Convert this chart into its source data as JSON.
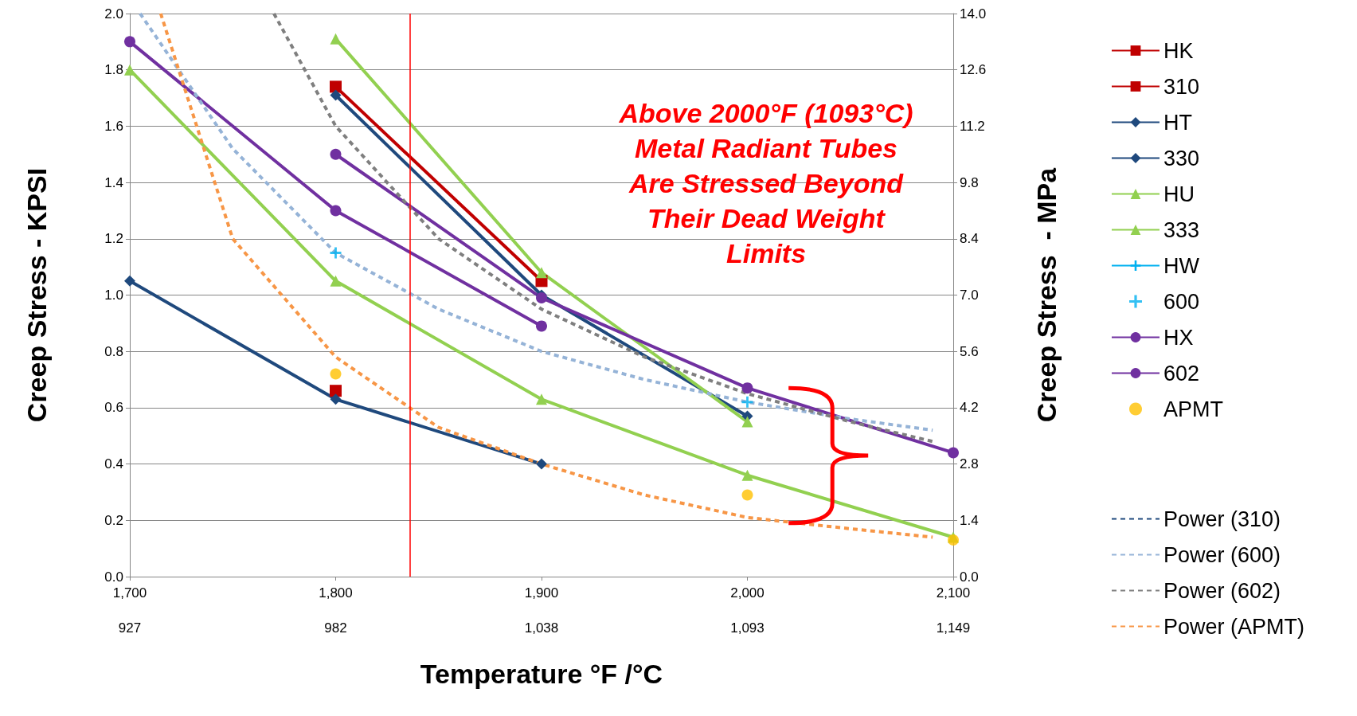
{
  "chart_data": {
    "type": "line",
    "xlabel": "Temperature °F /°C",
    "ylabel": "Creep Stress - KPSI",
    "y2label": "Creep Stress  - MPa",
    "x": [
      1700,
      1800,
      1900,
      2000,
      2100
    ],
    "xlim": [
      1700,
      2100
    ],
    "xticks": [
      {
        "value": 1700,
        "label": "1,700"
      },
      {
        "value": 1800,
        "label": "1,800"
      },
      {
        "value": 1900,
        "label": "1,900"
      },
      {
        "value": 2000,
        "label": "2,000"
      },
      {
        "value": 2100,
        "label": "2,100"
      }
    ],
    "x2lim": [
      926.67,
      1148.89
    ],
    "x2ticks": [
      {
        "value": 926.67,
        "label": "927"
      },
      {
        "value": 982.22,
        "label": "982"
      },
      {
        "value": 1037.78,
        "label": "1,038"
      },
      {
        "value": 1093.33,
        "label": "1,093"
      },
      {
        "value": 1148.89,
        "label": "1,149"
      }
    ],
    "ylim": [
      0,
      2
    ],
    "yticks": [
      {
        "value": 0,
        "label": "0.0"
      },
      0.2,
      0.4,
      0.6,
      0.8,
      {
        "value": 1,
        "label": "1.0"
      },
      1.2,
      1.4,
      1.6,
      1.8,
      {
        "value": 2,
        "label": "2.0"
      }
    ],
    "y2lim": [
      0,
      14
    ],
    "y2ticks": [
      {
        "value": 0,
        "label": "0.0"
      },
      1.4,
      2.8,
      4.2,
      5.6,
      {
        "value": 7,
        "label": "7.0"
      },
      8.4,
      9.8,
      11.2,
      12.6,
      {
        "value": 14,
        "label": "14.0"
      }
    ],
    "grid": "y",
    "legend": "right",
    "series": [
      {
        "name": "HK",
        "color": "#c00000",
        "marker": "square",
        "values": [
          null,
          1.74,
          1.05,
          null,
          null
        ]
      },
      {
        "name": "310",
        "color": "#c00000",
        "marker": "square",
        "values": [
          null,
          0.66,
          null,
          null,
          null
        ]
      },
      {
        "name": "HT",
        "color": "#1f497d",
        "marker": "diamond",
        "values": [
          null,
          1.71,
          1.0,
          0.57,
          null
        ]
      },
      {
        "name": "330",
        "color": "#1f497d",
        "marker": "diamond",
        "values": [
          1.05,
          0.63,
          0.4,
          null,
          null
        ]
      },
      {
        "name": "HU",
        "color": "#92d050",
        "marker": "triangle",
        "values": [
          null,
          1.91,
          1.08,
          0.55,
          null
        ]
      },
      {
        "name": "333",
        "color": "#92d050",
        "marker": "triangle",
        "values": [
          1.8,
          1.05,
          0.63,
          0.36,
          0.14
        ]
      },
      {
        "name": "HW",
        "color": "#00b0f0",
        "marker": "cross",
        "values": [
          null,
          null,
          null,
          null,
          null
        ]
      },
      {
        "name": "600",
        "type": "scatter",
        "color": "#00b0f0",
        "marker": "cross",
        "values": [
          null,
          1.15,
          null,
          0.62,
          null
        ]
      },
      {
        "name": "HX",
        "color": "#7030a0",
        "marker": "circle",
        "values": [
          1.9,
          1.3,
          0.89,
          null,
          null
        ]
      },
      {
        "name": "602",
        "color": "#7030a0",
        "marker": "circle",
        "values": [
          null,
          1.5,
          0.99,
          0.67,
          0.44
        ]
      },
      {
        "name": "APMT",
        "type": "scatter",
        "color": "#ffc000",
        "marker": "circle",
        "values": [
          null,
          0.72,
          null,
          0.29,
          0.13
        ]
      },
      {
        "name": "Power (310)",
        "color": "#1f497d",
        "line_style": "dashed",
        "marker": "none",
        "values": [
          null,
          null,
          null,
          null,
          null
        ]
      },
      {
        "name": "Power (600)",
        "color": "#95b3d7",
        "line_style": "dashed",
        "marker": "none",
        "x": [
          1705,
          1750,
          1800,
          1850,
          1900,
          1950,
          2000,
          2050,
          2090
        ],
        "values": [
          2.0,
          1.52,
          1.15,
          0.95,
          0.8,
          0.7,
          0.62,
          0.56,
          0.52
        ]
      },
      {
        "name": "Power (602)",
        "color": "#7f7f7f",
        "line_style": "dashed",
        "marker": "none",
        "x": [
          1770,
          1800,
          1850,
          1900,
          1950,
          2000,
          2050,
          2090
        ],
        "values": [
          2.0,
          1.6,
          1.2,
          0.95,
          0.78,
          0.65,
          0.55,
          0.48
        ]
      },
      {
        "name": "Power (APMT)",
        "color": "#f79646",
        "line_style": "dashed",
        "marker": "none",
        "x": [
          1715,
          1750,
          1800,
          1850,
          1900,
          1950,
          2000,
          2050,
          2090
        ],
        "values": [
          2.0,
          1.2,
          0.78,
          0.53,
          0.4,
          0.29,
          0.21,
          0.17,
          0.14
        ]
      }
    ],
    "ref_lines": [
      {
        "axis": "x",
        "value": 1836,
        "color": "#ff0000"
      }
    ],
    "annotations": [
      "Above 2000°F (1093°C)\nMetal Radiant Tubes\nAre Stressed Beyond\nTheir Dead Weight\nLimits"
    ]
  }
}
